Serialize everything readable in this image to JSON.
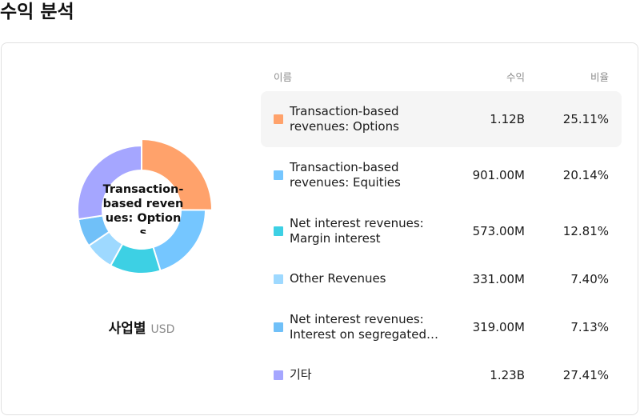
{
  "page": {
    "title": "수익 분석"
  },
  "donut": {
    "center_label": "Transaction-based revenues: Options",
    "category": "사업별",
    "unit": "USD"
  },
  "table": {
    "headers": {
      "name": "이름",
      "revenue": "수익",
      "share": "비율"
    },
    "rows": [
      {
        "name": "Transaction-based revenues: Options",
        "revenue": "1.12B",
        "share": "25.11%",
        "color": "#FFA26B",
        "active": true
      },
      {
        "name": "Transaction-based revenues: Equities",
        "revenue": "901.00M",
        "share": "20.14%",
        "color": "#75C6FF",
        "active": false
      },
      {
        "name": "Net interest revenues: Margin interest",
        "revenue": "573.00M",
        "share": "12.81%",
        "color": "#3DD0E4",
        "active": false
      },
      {
        "name": "Other Revenues",
        "revenue": "331.00M",
        "share": "7.40%",
        "color": "#9ED9FF",
        "active": false
      },
      {
        "name": "Net interest revenues: Interest on segregated cash",
        "revenue": "319.00M",
        "share": "7.13%",
        "color": "#70C0F8",
        "active": false
      },
      {
        "name": "기타",
        "revenue": "1.23B",
        "share": "27.41%",
        "color": "#A5A6FF",
        "active": false
      }
    ]
  },
  "chart_data": {
    "type": "pie",
    "categories": [
      "Transaction-based revenues: Options",
      "Transaction-based revenues: Equities",
      "Net interest revenues: Margin interest",
      "Other Revenues",
      "Net interest revenues: Interest on segregated cash",
      "기타"
    ],
    "values": [
      25.11,
      20.14,
      12.81,
      7.4,
      7.13,
      27.41
    ],
    "highlighted_index": 0,
    "colors": [
      "#FFA26B",
      "#75C6FF",
      "#3DD0E4",
      "#9ED9FF",
      "#70C0F8",
      "#A5A6FF"
    ]
  }
}
